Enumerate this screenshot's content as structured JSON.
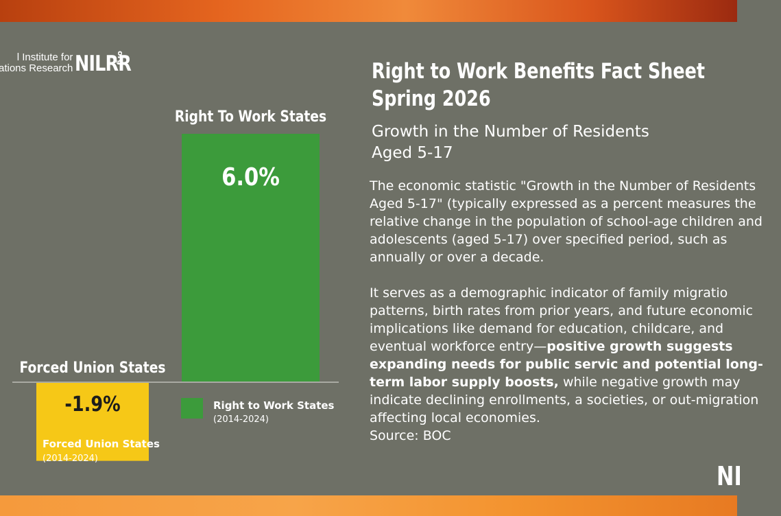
{
  "logo": {
    "line1": "l Institute for",
    "line2": "ations Research",
    "mark": "NILRR",
    "suffix": "org"
  },
  "heading": {
    "line1": "Right to Work Benefits Fact Sheet",
    "line2": "Spring 2026"
  },
  "subheading": {
    "line1": "Growth in the Number of Residents",
    "line2": "Aged 5-17"
  },
  "body": {
    "p1": "The economic statistic \"Growth in the Number of Residents Aged 5-17\" (typically expressed as a percent measures the relative change in the population of school-age children and adolescents (aged 5-17) over specified period, such as annually or over a decade.",
    "p2_start": "It serves as a demographic indicator of family migratio patterns, birth rates from prior years, and future economic implications like demand for education, childcare, and eventual workforce entry—",
    "p2_bold": "positive growth suggests expanding needs for public servic and potential long-term labor supply boosts,",
    "p2_end": " while negative growth may indicate declining enrollments, a societies, or out-migration affecting local economies.",
    "source": "Source: BOC"
  },
  "watermark": "NI",
  "chart_data": {
    "type": "bar",
    "categories": [
      "Forced Union States",
      "Right To Work States"
    ],
    "values": [
      -1.9,
      6.0
    ],
    "value_labels": [
      "-1.9%",
      "6.0%"
    ],
    "colors": [
      "#f6c817",
      "#3c9b3b"
    ],
    "ylim": [
      -1.9,
      6.0
    ],
    "legend": [
      {
        "name": "Right to Work States",
        "period": "(2014-2024)",
        "color": "#3c9b3b"
      }
    ],
    "category_note": {
      "name": "Forced Union States",
      "period": "(2014-2024)"
    }
  }
}
